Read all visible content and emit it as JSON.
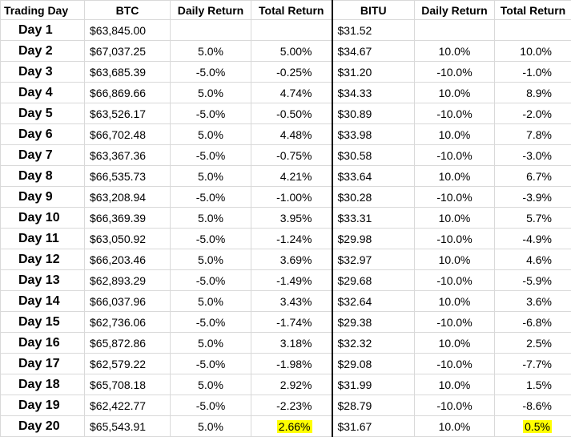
{
  "table": {
    "headers": [
      "Trading Day",
      "BTC",
      "Daily Return",
      "Total Return",
      "BITU",
      "Daily Return",
      "Total Return"
    ],
    "rows": [
      [
        "Day 1",
        "$63,845.00",
        null,
        null,
        "$31.52",
        null,
        null
      ],
      [
        "Day 2",
        "$67,037.25",
        "5.0%",
        "5.00%",
        "$34.67",
        "10.0%",
        "10.0%"
      ],
      [
        "Day 3",
        "$63,685.39",
        "-5.0%",
        "-0.25%",
        "$31.20",
        "-10.0%",
        "-1.0%"
      ],
      [
        "Day 4",
        "$66,869.66",
        "5.0%",
        "4.74%",
        "$34.33",
        "10.0%",
        "8.9%"
      ],
      [
        "Day 5",
        "$63,526.17",
        "-5.0%",
        "-0.50%",
        "$30.89",
        "-10.0%",
        "-2.0%"
      ],
      [
        "Day 6",
        "$66,702.48",
        "5.0%",
        "4.48%",
        "$33.98",
        "10.0%",
        "7.8%"
      ],
      [
        "Day 7",
        "$63,367.36",
        "-5.0%",
        "-0.75%",
        "$30.58",
        "-10.0%",
        "-3.0%"
      ],
      [
        "Day 8",
        "$66,535.73",
        "5.0%",
        "4.21%",
        "$33.64",
        "10.0%",
        "6.7%"
      ],
      [
        "Day 9",
        "$63,208.94",
        "-5.0%",
        "-1.00%",
        "$30.28",
        "-10.0%",
        "-3.9%"
      ],
      [
        "Day 10",
        "$66,369.39",
        "5.0%",
        "3.95%",
        "$33.31",
        "10.0%",
        "5.7%"
      ],
      [
        "Day 11",
        "$63,050.92",
        "-5.0%",
        "-1.24%",
        "$29.98",
        "-10.0%",
        "-4.9%"
      ],
      [
        "Day 12",
        "$66,203.46",
        "5.0%",
        "3.69%",
        "$32.97",
        "10.0%",
        "4.6%"
      ],
      [
        "Day 13",
        "$62,893.29",
        "-5.0%",
        "-1.49%",
        "$29.68",
        "-10.0%",
        "-5.9%"
      ],
      [
        "Day 14",
        "$66,037.96",
        "5.0%",
        "3.43%",
        "$32.64",
        "10.0%",
        "3.6%"
      ],
      [
        "Day 15",
        "$62,736.06",
        "-5.0%",
        "-1.74%",
        "$29.38",
        "-10.0%",
        "-6.8%"
      ],
      [
        "Day 16",
        "$65,872.86",
        "5.0%",
        "3.18%",
        "$32.32",
        "10.0%",
        "2.5%"
      ],
      [
        "Day 17",
        "$62,579.22",
        "-5.0%",
        "-1.98%",
        "$29.08",
        "-10.0%",
        "-7.7%"
      ],
      [
        "Day 18",
        "$65,708.18",
        "5.0%",
        "2.92%",
        "$31.99",
        "10.0%",
        "1.5%"
      ],
      [
        "Day 19",
        "$62,422.77",
        "-5.0%",
        "-2.23%",
        "$28.79",
        "-10.0%",
        "-8.6%"
      ],
      [
        "Day 20",
        "$65,543.91",
        "5.0%",
        "2.66%",
        "$31.67",
        "10.0%",
        "0.5%"
      ]
    ]
  }
}
